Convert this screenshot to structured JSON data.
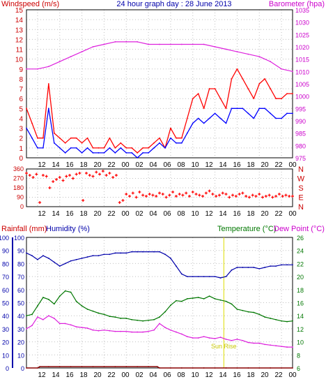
{
  "header": {
    "left": "Windspeed (m/s)",
    "center": "24 hour graph day : 28 June 2013",
    "right": "Barometer (hpa)"
  },
  "mid_header": {
    "rain": "Rainfall (mm)",
    "humidity": "Humidity (%)",
    "temperature": "Temperature (°C)",
    "dewpoint": "Dew Point (°C)"
  },
  "colors": {
    "wind_gust": "#ff0000",
    "wind_avg": "#0000ff",
    "barometer": "#dd22dd",
    "direction": "#ff0000",
    "rain": "#880000",
    "humidity": "#0000aa",
    "temperature": "#007700",
    "dewpoint": "#dd22dd",
    "sunrise": "#dddd00",
    "grid": "#c0c0c0",
    "frame": "#000000"
  },
  "chart_data": [
    {
      "type": "line",
      "x_ticks": [
        "12",
        "14",
        "16",
        "18",
        "20",
        "22",
        "00",
        "02",
        "04",
        "06",
        "08",
        "10",
        "12",
        "14",
        "16",
        "18",
        "20",
        "22",
        "00"
      ],
      "xlim_hours": [
        0,
        24
      ],
      "y_left_label": "Windspeed (m/s)",
      "y_left_ticks": [
        "0",
        "1",
        "2",
        "3",
        "4",
        "5",
        "6",
        "7",
        "8",
        "9",
        "10",
        "11",
        "12",
        "13",
        "14",
        "15"
      ],
      "ylim_left": [
        0,
        15
      ],
      "y_right_label": "Barometer (hpa)",
      "y_right_ticks": [
        "975",
        "980",
        "985",
        "990",
        "995",
        "1000",
        "1005",
        "1010",
        "1015",
        "1020",
        "1025",
        "1030",
        "1035"
      ],
      "ylim_right": [
        975,
        1035
      ],
      "grid": true,
      "series": [
        {
          "name": "gust",
          "axis": "left",
          "x": [
            0,
            0.5,
            1,
            1.5,
            2,
            2.5,
            3,
            3.5,
            4,
            4.5,
            5,
            5.5,
            6,
            6.5,
            7,
            7.5,
            8,
            8.5,
            9,
            9.5,
            10,
            10.5,
            11,
            11.5,
            12,
            12.5,
            13,
            13.5,
            14,
            14.5,
            15,
            15.5,
            16,
            16.5,
            17,
            17.5,
            18,
            18.5,
            19,
            19.5,
            20,
            20.5,
            21,
            21.5,
            22,
            22.5,
            23,
            23.5,
            24
          ],
          "values": [
            5,
            3.5,
            2,
            2,
            7.5,
            2.5,
            2,
            1.5,
            2,
            2,
            1.5,
            2,
            1,
            1,
            1,
            2,
            1,
            1.5,
            1,
            1,
            0.5,
            1,
            1,
            1.5,
            2,
            1,
            3,
            2,
            2,
            4,
            6,
            6.5,
            5,
            7,
            7,
            6,
            5,
            8,
            9,
            8,
            7,
            6,
            7.5,
            8,
            7,
            6,
            6,
            6.5,
            6.5
          ]
        },
        {
          "name": "average",
          "axis": "left",
          "x": [
            0,
            0.5,
            1,
            1.5,
            2,
            2.5,
            3,
            3.5,
            4,
            4.5,
            5,
            5.5,
            6,
            6.5,
            7,
            7.5,
            8,
            8.5,
            9,
            9.5,
            10,
            10.5,
            11,
            11.5,
            12,
            12.5,
            13,
            13.5,
            14,
            14.5,
            15,
            15.5,
            16,
            16.5,
            17,
            17.5,
            18,
            18.5,
            19,
            19.5,
            20,
            20.5,
            21,
            21.5,
            22,
            22.5,
            23,
            23.5,
            24
          ],
          "values": [
            3,
            2,
            1,
            1,
            5,
            1.5,
            1,
            0.5,
            1,
            1,
            0.5,
            1,
            0.5,
            0.5,
            0.5,
            1,
            0.5,
            1,
            0.5,
            0.5,
            0,
            0.5,
            0.5,
            1,
            1.5,
            1,
            2,
            1.5,
            1.5,
            2.5,
            3.5,
            4,
            3.5,
            4,
            4.5,
            4,
            3.5,
            5,
            5,
            5,
            4.5,
            4,
            5,
            5,
            4.5,
            4,
            4,
            4.5,
            4.5
          ]
        },
        {
          "name": "barometer",
          "axis": "right",
          "x": [
            0,
            1,
            2,
            3,
            4,
            5,
            6,
            7,
            8,
            9,
            10,
            11,
            12,
            13,
            14,
            15,
            16,
            17,
            18,
            19,
            20,
            21,
            22,
            23,
            24
          ],
          "values": [
            1011,
            1011,
            1012,
            1014,
            1016,
            1018,
            1020,
            1021,
            1022,
            1022,
            1022,
            1021,
            1021,
            1021,
            1021,
            1021,
            1021,
            1020,
            1019,
            1018,
            1017,
            1016,
            1014,
            1011,
            1010
          ]
        }
      ]
    },
    {
      "type": "scatter",
      "x_ticks": [
        "12",
        "14",
        "16",
        "18",
        "20",
        "22",
        "00",
        "02",
        "04",
        "06",
        "08",
        "10",
        "12",
        "14",
        "16",
        "18",
        "20",
        "22",
        "00"
      ],
      "y_left_ticks": [
        "0",
        "90",
        "180",
        "270",
        "360"
      ],
      "y_right_ticks": [
        "N",
        "W",
        "S",
        "E",
        "N"
      ],
      "ylim": [
        0,
        360
      ],
      "series": [
        {
          "name": "wind direction",
          "x": [
            0,
            0.3,
            0.6,
            0.9,
            1.2,
            1.5,
            1.8,
            2.1,
            2.4,
            2.7,
            3,
            3.3,
            3.6,
            3.9,
            4.2,
            4.5,
            4.8,
            5.1,
            5.4,
            5.7,
            6,
            6.3,
            6.6,
            6.9,
            7.2,
            7.5,
            7.8,
            8.1,
            8.4,
            8.7,
            9,
            9.3,
            9.6,
            9.9,
            10.2,
            10.5,
            10.8,
            11.1,
            11.4,
            11.7,
            12,
            12.3,
            12.6,
            12.9,
            13.2,
            13.5,
            13.8,
            14.1,
            14.4,
            14.7,
            15,
            15.3,
            15.6,
            15.9,
            16.2,
            16.5,
            16.8,
            17.1,
            17.4,
            17.7,
            18,
            18.3,
            18.6,
            18.9,
            19.2,
            19.5,
            19.8,
            20.1,
            20.4,
            20.7,
            21,
            21.3,
            21.6,
            21.9,
            22.2,
            22.5,
            22.8,
            23.1,
            23.4,
            23.7,
            24
          ],
          "values": [
            320,
            300,
            280,
            310,
            40,
            300,
            290,
            180,
            240,
            260,
            280,
            250,
            290,
            300,
            270,
            310,
            320,
            60,
            320,
            300,
            290,
            330,
            310,
            340,
            300,
            320,
            280,
            300,
            40,
            60,
            120,
            100,
            130,
            90,
            140,
            110,
            100,
            120,
            110,
            100,
            130,
            120,
            90,
            110,
            140,
            100,
            120,
            110,
            130,
            100,
            140,
            120,
            110,
            100,
            130,
            150,
            120,
            100,
            110,
            130,
            120,
            90,
            110,
            100,
            120,
            130,
            100,
            90,
            110,
            100,
            120,
            90,
            100,
            110,
            90,
            100,
            120,
            100,
            110,
            100,
            100
          ]
        }
      ]
    },
    {
      "type": "line",
      "x_ticks": [
        "12",
        "14",
        "16",
        "18",
        "20",
        "22",
        "00",
        "02",
        "04",
        "06",
        "08",
        "10",
        "12",
        "14",
        "16",
        "18",
        "20",
        "22",
        "00"
      ],
      "y_left_label_rain": "Rainfall (mm)",
      "y_left_ticks_rain": [
        "0",
        "10",
        "20",
        "30",
        "40",
        "50",
        "60",
        "70",
        "80",
        "90",
        "100"
      ],
      "y_left_label_humidity": "Humidity (%)",
      "y_left_ticks_humidity": [
        "0",
        "10",
        "20",
        "30",
        "40",
        "50",
        "60",
        "70",
        "80",
        "90",
        "100"
      ],
      "y_right_label": "Temperature (°C)Dew Point (°C)",
      "y_right_ticks": [
        "6",
        "8",
        "10",
        "12",
        "14",
        "16",
        "18",
        "20",
        "22",
        "24",
        "26"
      ],
      "annotation": "Sun Rise",
      "series": [
        {
          "name": "humidity",
          "axis": "humidity",
          "x": [
            0,
            0.5,
            1,
            1.5,
            2,
            2.5,
            3,
            3.5,
            4,
            4.5,
            5,
            5.5,
            6,
            6.5,
            7,
            7.5,
            8,
            8.5,
            9,
            9.5,
            10,
            10.5,
            11,
            11.5,
            12,
            12.5,
            13,
            13.5,
            14,
            14.5,
            15,
            15.5,
            16,
            16.5,
            17,
            17.5,
            18,
            18.5,
            19,
            19.5,
            20,
            20.5,
            21,
            21.5,
            22,
            22.5,
            23,
            23.5,
            24
          ],
          "values": [
            88,
            86,
            83,
            86,
            84,
            81,
            78,
            80,
            82,
            83,
            84,
            85,
            86,
            86,
            87,
            87,
            88,
            88,
            88,
            89,
            89,
            89,
            89,
            89,
            89,
            87,
            84,
            78,
            72,
            70,
            70,
            70,
            70,
            70,
            70,
            69,
            70,
            75,
            77,
            77,
            77,
            77,
            76,
            77,
            78,
            78,
            79,
            79,
            79
          ]
        },
        {
          "name": "temperature",
          "axis": "right",
          "x": [
            0,
            0.5,
            1,
            1.5,
            2,
            2.5,
            3,
            3.5,
            4,
            4.5,
            5,
            5.5,
            6,
            6.5,
            7,
            7.5,
            8,
            8.5,
            9,
            9.5,
            10,
            10.5,
            11,
            11.5,
            12,
            12.5,
            13,
            13.5,
            14,
            14.5,
            15,
            15.5,
            16,
            16.5,
            17,
            17.5,
            18,
            18.5,
            19,
            19.5,
            20,
            20.5,
            21,
            21.5,
            22,
            22.5,
            23,
            23.5,
            24
          ],
          "values": [
            14,
            14.2,
            15.5,
            16.8,
            16.5,
            15.8,
            17,
            17.8,
            17.6,
            16.2,
            15.5,
            15,
            14.7,
            14.4,
            14.2,
            13.9,
            13.8,
            13.6,
            13.6,
            13.4,
            13.3,
            13.2,
            13.3,
            13.4,
            13.8,
            14.6,
            15.6,
            16.3,
            16.2,
            16.6,
            16.7,
            16.8,
            16.6,
            17,
            16.6,
            16.4,
            16.2,
            15.8,
            15,
            14.8,
            14.6,
            14.5,
            14.2,
            13.8,
            13.6,
            13.4,
            13.2,
            13.1,
            13.2
          ]
        },
        {
          "name": "dew point",
          "axis": "right",
          "x": [
            0,
            0.5,
            1,
            1.5,
            2,
            2.5,
            3,
            3.5,
            4,
            4.5,
            5,
            5.5,
            6,
            6.5,
            7,
            7.5,
            8,
            8.5,
            9,
            9.5,
            10,
            10.5,
            11,
            11.5,
            12,
            12.5,
            13,
            13.5,
            14,
            14.5,
            15,
            15.5,
            16,
            16.5,
            17,
            17.5,
            18,
            18.5,
            19,
            19.5,
            20,
            20.5,
            21,
            21.5,
            22,
            22.5,
            23,
            23.5,
            24
          ],
          "values": [
            12,
            12.5,
            13.8,
            13.4,
            14,
            13.6,
            12.8,
            12.8,
            12.6,
            12.3,
            12.2,
            12.1,
            11.8,
            11.7,
            11.8,
            11.7,
            11.6,
            11.6,
            11.6,
            11.5,
            11.5,
            11.5,
            11.6,
            11.8,
            12.8,
            12.2,
            11.8,
            11.5,
            11.2,
            10.8,
            10.6,
            10.6,
            10.8,
            10.6,
            10.5,
            10.7,
            10.4,
            10.2,
            10.4,
            10.2,
            9.9,
            9.8,
            9.8,
            9.6,
            9.5,
            9.4,
            9.3,
            9.2,
            9.2
          ]
        },
        {
          "name": "rainfall",
          "axis": "rain",
          "x": [
            0,
            1,
            1.2,
            2,
            3,
            4,
            5,
            6,
            7,
            8,
            9,
            10,
            11,
            11.8,
            12,
            13,
            14,
            15,
            16,
            17,
            18,
            19,
            20,
            21,
            22,
            23,
            24
          ],
          "values": [
            0,
            0,
            1,
            1,
            1,
            1,
            1,
            1,
            1,
            1,
            1,
            1,
            1,
            1,
            0,
            0,
            0,
            0,
            0,
            0,
            0,
            0,
            0,
            0,
            0,
            0,
            0
          ]
        }
      ]
    }
  ]
}
